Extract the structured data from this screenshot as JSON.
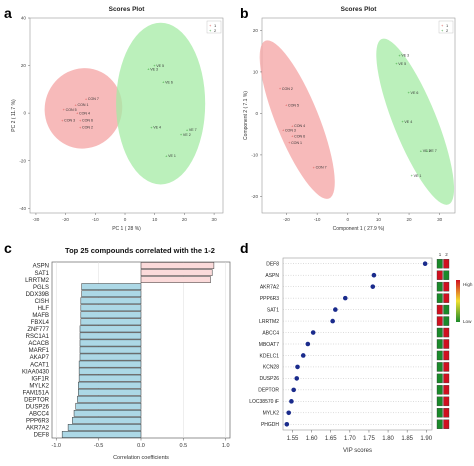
{
  "panel_letters": {
    "a": "a",
    "b": "b",
    "c": "c",
    "d": "d"
  },
  "chart_data": [
    {
      "panel": "a",
      "type": "scatter",
      "title": "Scores Plot",
      "xlabel": "PC 1 ( 28 %)",
      "ylabel": "PC 2 ( 11.7 %)",
      "xticks": [
        -30,
        -20,
        -10,
        0,
        10,
        20,
        30
      ],
      "yticks": [
        -40,
        -20,
        0,
        20,
        40
      ],
      "xlim": [
        -32,
        33
      ],
      "ylim": [
        -42,
        40
      ],
      "legend": {
        "position": "top-right",
        "entries": [
          "1",
          "2"
        ]
      },
      "colors": {
        "1": "#f4a3a3",
        "2": "#a4eba4",
        "1_text": "#d9534f",
        "2_text": "#2e9e2e"
      },
      "ellipses": [
        {
          "group": "1",
          "cx": -14,
          "cy": 2,
          "rx": 13,
          "ry": 17,
          "angle": 20
        },
        {
          "group": "2",
          "cx": 12,
          "cy": 4,
          "rx": 15,
          "ry": 34,
          "angle": 0
        }
      ],
      "points": [
        {
          "label": "CON 7",
          "group": "1",
          "x": -13,
          "y": 6
        },
        {
          "label": "CON 1",
          "group": "1",
          "x": -16.5,
          "y": 3.5
        },
        {
          "label": "CON 5",
          "group": "1",
          "x": -20.5,
          "y": 1.5
        },
        {
          "label": "CON 4",
          "group": "1",
          "x": -16,
          "y": 0
        },
        {
          "label": "CON 3",
          "group": "1",
          "x": -21,
          "y": -3
        },
        {
          "label": "CON 6",
          "group": "1",
          "x": -15,
          "y": -3
        },
        {
          "label": "CON 2",
          "group": "1",
          "x": -15,
          "y": -6
        },
        {
          "label": "VE 5",
          "group": "2",
          "x": 10,
          "y": 20
        },
        {
          "label": "VE 3",
          "group": "2",
          "x": 8,
          "y": 18.5
        },
        {
          "label": "VE 6",
          "group": "2",
          "x": 13,
          "y": 13
        },
        {
          "label": "VE 4",
          "group": "2",
          "x": 9,
          "y": -6
        },
        {
          "label": "VE 7",
          "group": "2",
          "x": 21,
          "y": -7
        },
        {
          "label": "VE 2",
          "group": "2",
          "x": 19,
          "y": -9
        },
        {
          "label": "VE 1",
          "group": "2",
          "x": 14,
          "y": -18
        }
      ]
    },
    {
      "panel": "b",
      "type": "scatter",
      "title": "Scores Plot",
      "xlabel": "Component 1 ( 27.9 %)",
      "ylabel": "Component 2 ( 7.1 %)",
      "xticks": [
        -20,
        -10,
        0,
        10,
        20,
        30
      ],
      "yticks": [
        -20,
        -10,
        0,
        10,
        20
      ],
      "xlim": [
        -28,
        35
      ],
      "ylim": [
        -24,
        23
      ],
      "legend": {
        "position": "top-right",
        "entries": [
          "1",
          "2"
        ]
      },
      "colors": {
        "1": "#f4a3a3",
        "2": "#a4eba4",
        "1_text": "#d9534f",
        "2_text": "#2e9e2e"
      },
      "ellipses": [
        {
          "group": "1",
          "cx": -16.5,
          "cy": -1.5,
          "rx": 7,
          "ry": 20.5,
          "angle": -22
        },
        {
          "group": "2",
          "cx": 22,
          "cy": -2,
          "rx": 7,
          "ry": 21.5,
          "angle": -22
        }
      ],
      "points": [
        {
          "label": "CON 2",
          "group": "1",
          "x": -22,
          "y": 6
        },
        {
          "label": "CON 5",
          "group": "1",
          "x": -20,
          "y": 2
        },
        {
          "label": "CON 4",
          "group": "1",
          "x": -18,
          "y": -3
        },
        {
          "label": "CON 3",
          "group": "1",
          "x": -21,
          "y": -4
        },
        {
          "label": "CON 6",
          "group": "1",
          "x": -18,
          "y": -5.5
        },
        {
          "label": "CON 1",
          "group": "1",
          "x": -19,
          "y": -7
        },
        {
          "label": "CON 7",
          "group": "1",
          "x": -11,
          "y": -13
        },
        {
          "label": "VE 3",
          "group": "2",
          "x": 17,
          "y": 14
        },
        {
          "label": "VE 5",
          "group": "2",
          "x": 16,
          "y": 12
        },
        {
          "label": "VE 6",
          "group": "2",
          "x": 20,
          "y": 5
        },
        {
          "label": "VE 4",
          "group": "2",
          "x": 18,
          "y": -2
        },
        {
          "label": "VE 2",
          "group": "2",
          "x": 24,
          "y": -9
        },
        {
          "label": "VE 7",
          "group": "2",
          "x": 26,
          "y": -9
        },
        {
          "label": "VE 1",
          "group": "2",
          "x": 21,
          "y": -15
        }
      ]
    },
    {
      "panel": "c",
      "type": "bar",
      "orientation": "horizontal",
      "title": "Top 25 compounds correlated with the 1-2",
      "xlabel": "Correlation coefficients",
      "xticks": [
        -1.0,
        -0.5,
        0.0,
        0.5,
        1.0
      ],
      "tick_labels": [
        "-1.0",
        "-0.5",
        "0.0",
        "0.5",
        "1.0"
      ],
      "xlim": [
        -1.05,
        1.05
      ],
      "colors": {
        "positive": "#fbdada",
        "negative": "#acd8e6"
      },
      "categories": [
        "ASPN",
        "SAT1",
        "LRRTM2",
        "PGLS",
        "DDX39B",
        "CISH",
        "HLF",
        "MAFB",
        "FBXL4",
        "ZNF777",
        "RSC1A1",
        "ACACB",
        "MARF1",
        "AKAP7",
        "ACAT1",
        "KIAA0430",
        "IGF1R",
        "MYLK2",
        "FAM151A",
        "DEPTOR",
        "DUSP26",
        "ABCC4",
        "PPP6R3",
        "AKR7A2",
        "DEF8"
      ],
      "values": [
        0.86,
        0.84,
        0.82,
        -0.7,
        -0.7,
        -0.71,
        -0.71,
        -0.71,
        -0.71,
        -0.72,
        -0.72,
        -0.72,
        -0.72,
        -0.72,
        -0.73,
        -0.73,
        -0.73,
        -0.74,
        -0.74,
        -0.75,
        -0.77,
        -0.79,
        -0.81,
        -0.86,
        -0.93
      ]
    },
    {
      "panel": "d",
      "type": "scatter",
      "subtype": "dot",
      "xlabel": "VIP scores",
      "xticks": [
        1.55,
        1.6,
        1.65,
        1.7,
        1.75,
        1.8,
        1.85,
        1.9
      ],
      "tick_labels": [
        "1.55",
        "1.60",
        "1.65",
        "1.70",
        "1.75",
        "1.80",
        "1.85",
        "1.90"
      ],
      "xlim": [
        1.525,
        1.915
      ],
      "point_color": "#1a2b8c",
      "categories": [
        "DEF8",
        "ASPN",
        "AKR7A2",
        "PPP6R3",
        "SAT1",
        "LRRTM2",
        "ABCC4",
        "MBOAT7",
        "KDELC1",
        "KCN28",
        "DUSP26",
        "DEPTOR",
        "LOC38570 iF",
        "MYLK2",
        "PHGDH"
      ],
      "values": [
        1.897,
        1.763,
        1.76,
        1.688,
        1.662,
        1.655,
        1.604,
        1.59,
        1.578,
        1.563,
        1.561,
        1.553,
        1.547,
        1.54,
        1.535
      ],
      "heat_columns": [
        "1",
        "2"
      ],
      "heat_colors": {
        "high": "#d01020",
        "low": "#1a8a2a"
      },
      "heat_rows": [
        [
          "low",
          "high"
        ],
        [
          "high",
          "low"
        ],
        [
          "low",
          "high"
        ],
        [
          "low",
          "high"
        ],
        [
          "high",
          "low"
        ],
        [
          "high",
          "low"
        ],
        [
          "low",
          "high"
        ],
        [
          "low",
          "high"
        ],
        [
          "low",
          "high"
        ],
        [
          "low",
          "high"
        ],
        [
          "low",
          "high"
        ],
        [
          "low",
          "high"
        ],
        [
          "low",
          "high"
        ],
        [
          "low",
          "high"
        ],
        [
          "low",
          "high"
        ]
      ],
      "colorbar": {
        "high_label": "High",
        "low_label": "Low"
      }
    }
  ]
}
